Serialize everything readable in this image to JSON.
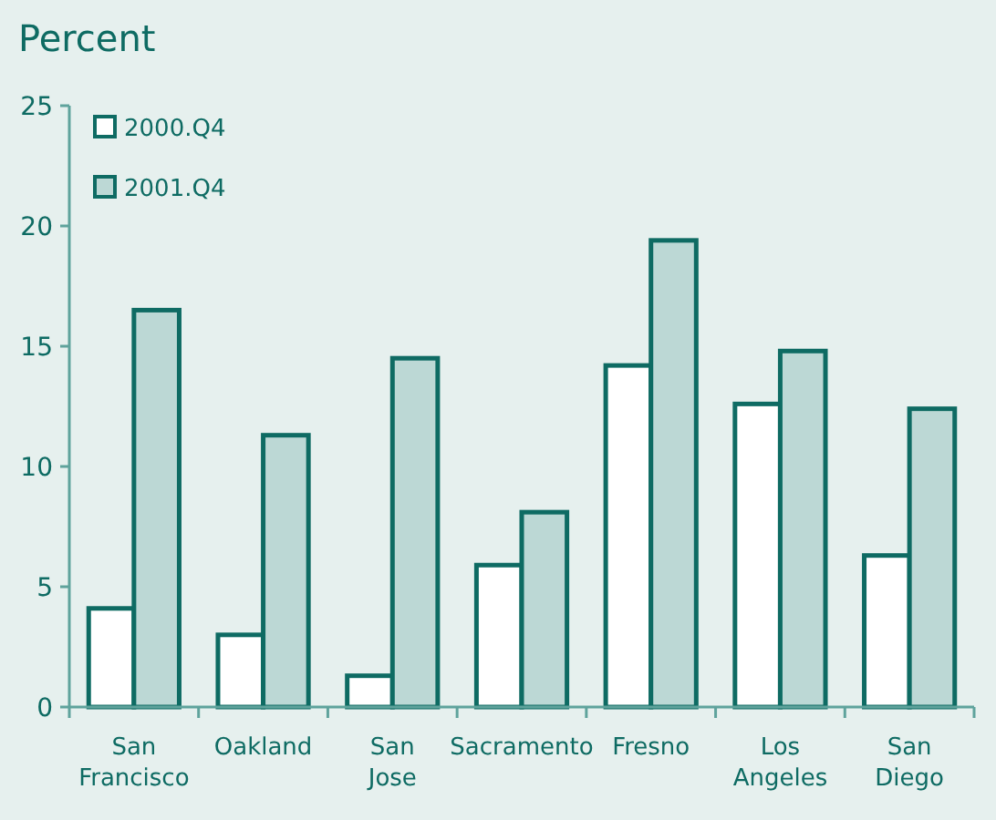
{
  "chart_data": {
    "type": "bar",
    "title": "Percent",
    "categories": [
      "San Francisco",
      "Oakland",
      "San Jose",
      "Sacramento",
      "Fresno",
      "Los Angeles",
      "San Diego"
    ],
    "series": [
      {
        "name": "2000.Q4",
        "color": "#ffffff",
        "values": [
          4.1,
          3.0,
          1.3,
          5.9,
          14.2,
          12.6,
          6.3
        ]
      },
      {
        "name": "2001.Q4",
        "color": "#bcd8d5",
        "values": [
          16.5,
          11.3,
          14.5,
          8.1,
          19.4,
          14.8,
          12.4
        ]
      }
    ],
    "ylim": [
      0,
      25
    ],
    "yticks": [
      0,
      5,
      10,
      15,
      20,
      25
    ],
    "grid": false,
    "legend": "top left"
  }
}
